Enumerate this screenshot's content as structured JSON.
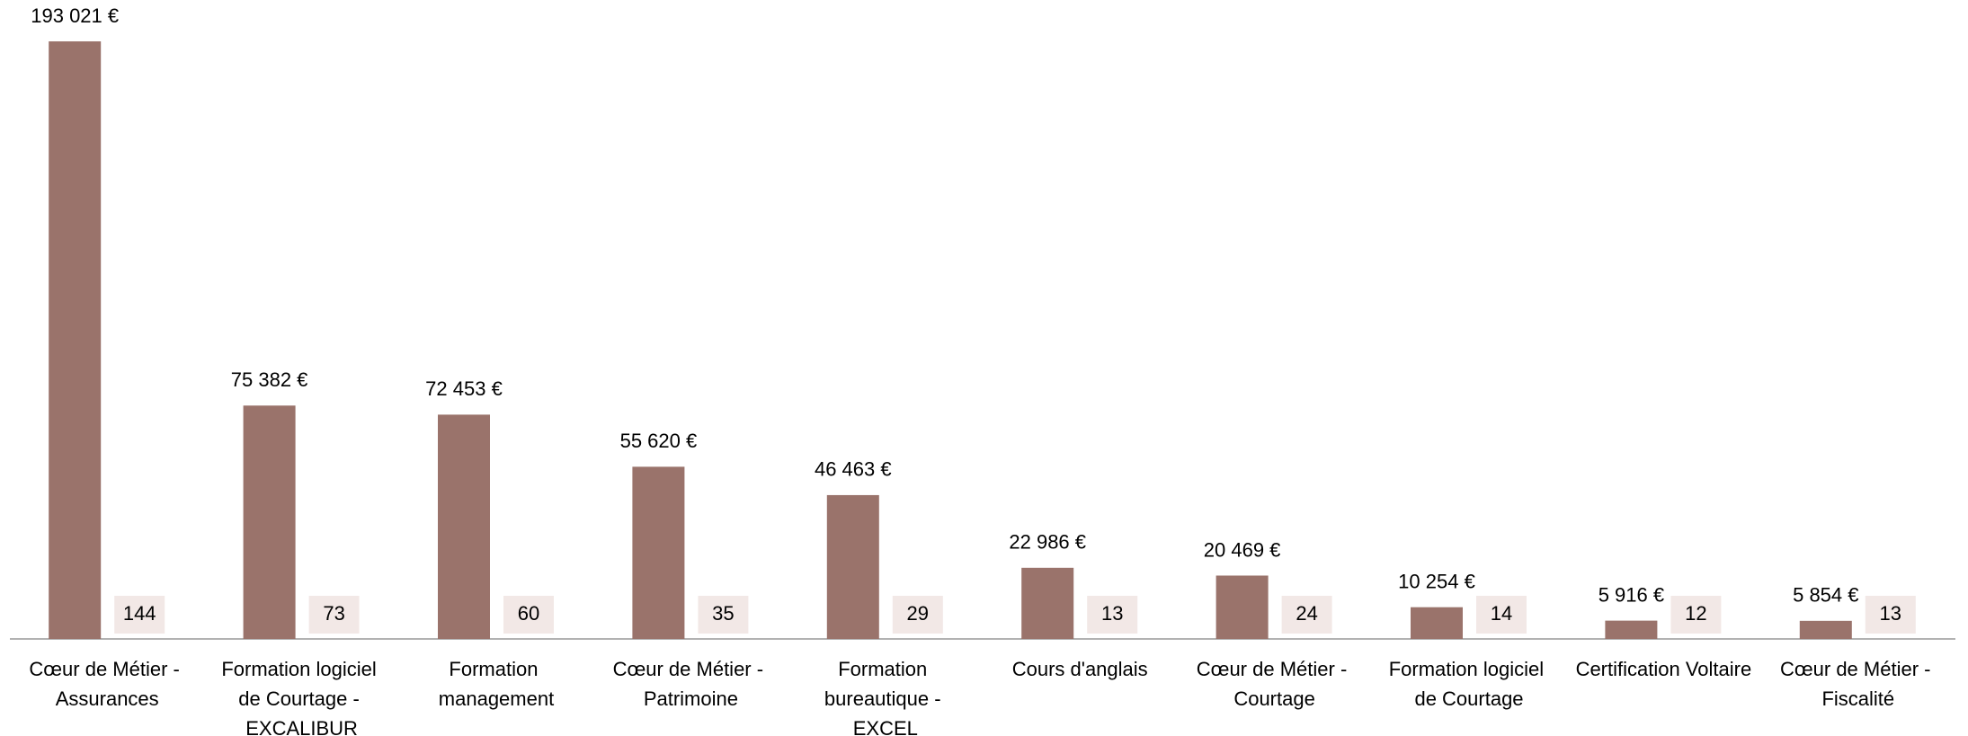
{
  "chart_data": {
    "type": "bar",
    "categories": [
      "Cœur de Métier - Assurances",
      "Formation logiciel de Courtage - EXCALIBUR",
      "Formation management",
      "Cœur de Métier - Patrimoine",
      "Formation bureautique - EXCEL",
      "Cours d'anglais",
      "Cœur de Métier - Courtage",
      "Formation logiciel de Courtage",
      "Certification Voltaire",
      "Cœur de Métier - Fiscalité"
    ],
    "series": [
      {
        "color": "#9a736b",
        "values": [
          193021,
          75382,
          72453,
          55620,
          46463,
          22986,
          20469,
          10254,
          5916,
          5854
        ],
        "value_labels": [
          "193 021 €",
          "75 382 €",
          "72 453 €",
          "55 620 €",
          "46 463 €",
          "22 986 €",
          "20 469 €",
          "10 254 €",
          "5 916 €",
          "5 854 €"
        ]
      },
      {
        "color": "#f2e8e6",
        "values": [
          144,
          73,
          60,
          35,
          29,
          13,
          24,
          14,
          12,
          13
        ]
      }
    ],
    "ylim": [
      0,
      200000
    ]
  }
}
